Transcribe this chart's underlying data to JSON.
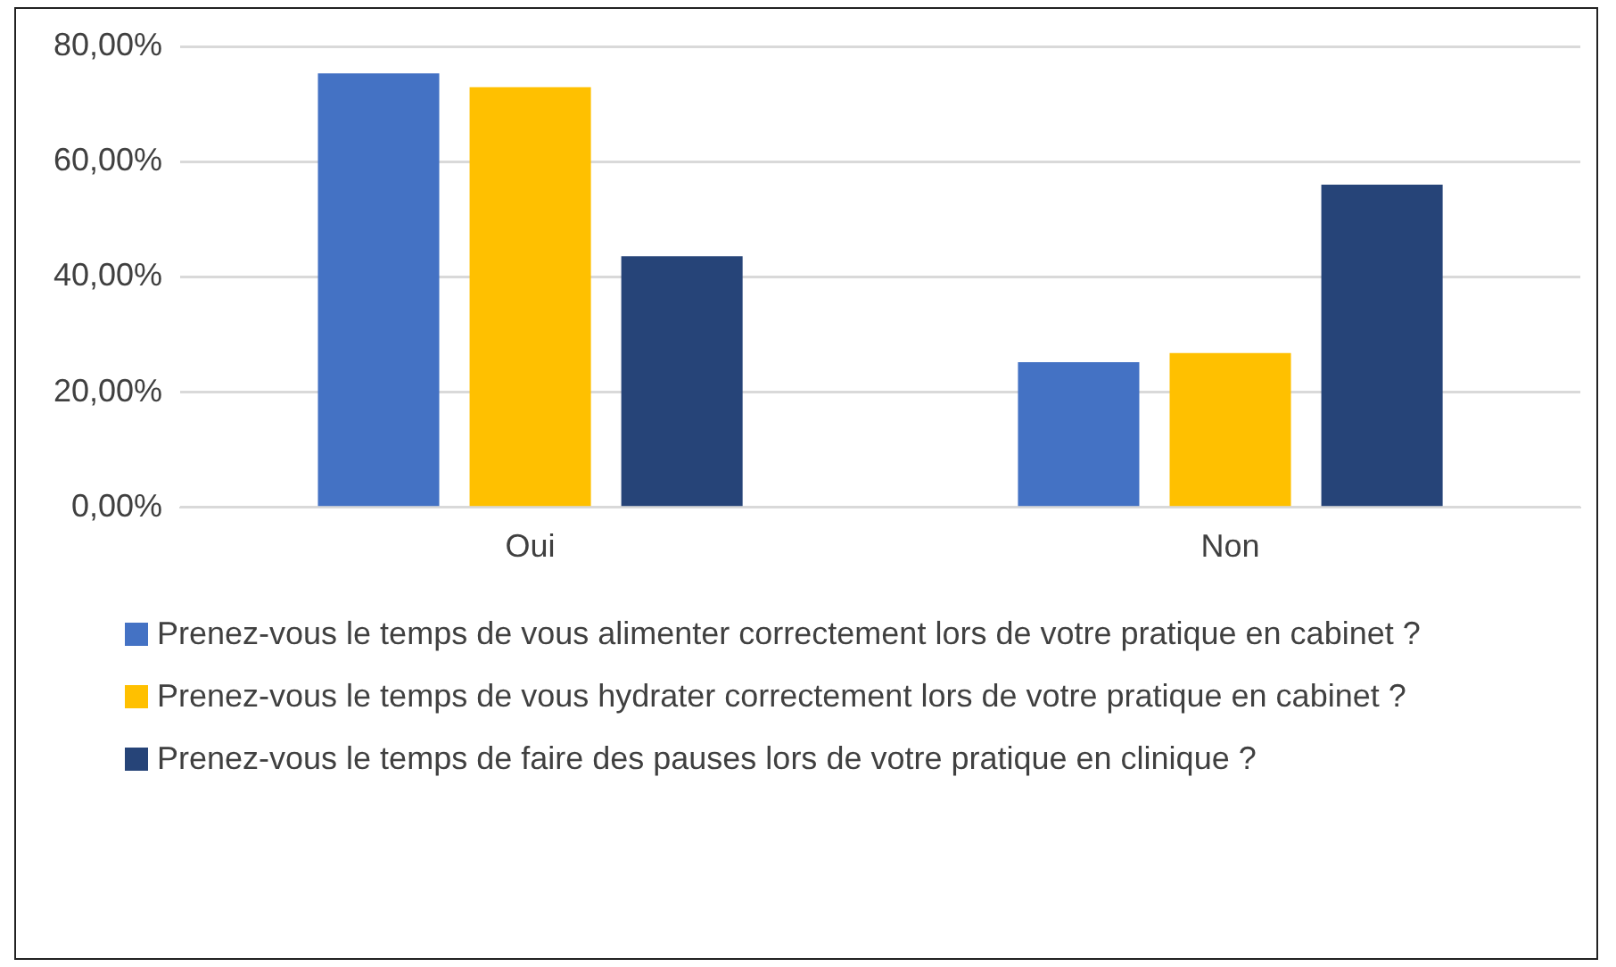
{
  "chart_data": {
    "type": "bar",
    "categories": [
      "Oui",
      "Non"
    ],
    "series": [
      {
        "name": "Prenez-vous le temps de vous alimenter correctement lors de votre pratique en cabinet ?",
        "color": "#4472c4",
        "values": [
          75.3,
          25.2
        ]
      },
      {
        "name": "Prenez-vous le temps de vous hydrater correctement lors de votre pratique en cabinet ?",
        "color": "#ffc000",
        "values": [
          72.9,
          26.8
        ]
      },
      {
        "name": "Prenez-vous le temps de faire des pauses lors de votre pratique en clinique ?",
        "color": "#264478",
        "values": [
          43.6,
          56
        ]
      }
    ],
    "ylim": [
      0,
      80
    ],
    "yticks": [
      {
        "value": 0,
        "label": "0,00%"
      },
      {
        "value": 20,
        "label": "20,00%"
      },
      {
        "value": 40,
        "label": "40,00%"
      },
      {
        "value": 60,
        "label": "60,00%"
      },
      {
        "value": 80,
        "label": "80,00%"
      }
    ],
    "grid": "y",
    "legend": "bottom"
  }
}
